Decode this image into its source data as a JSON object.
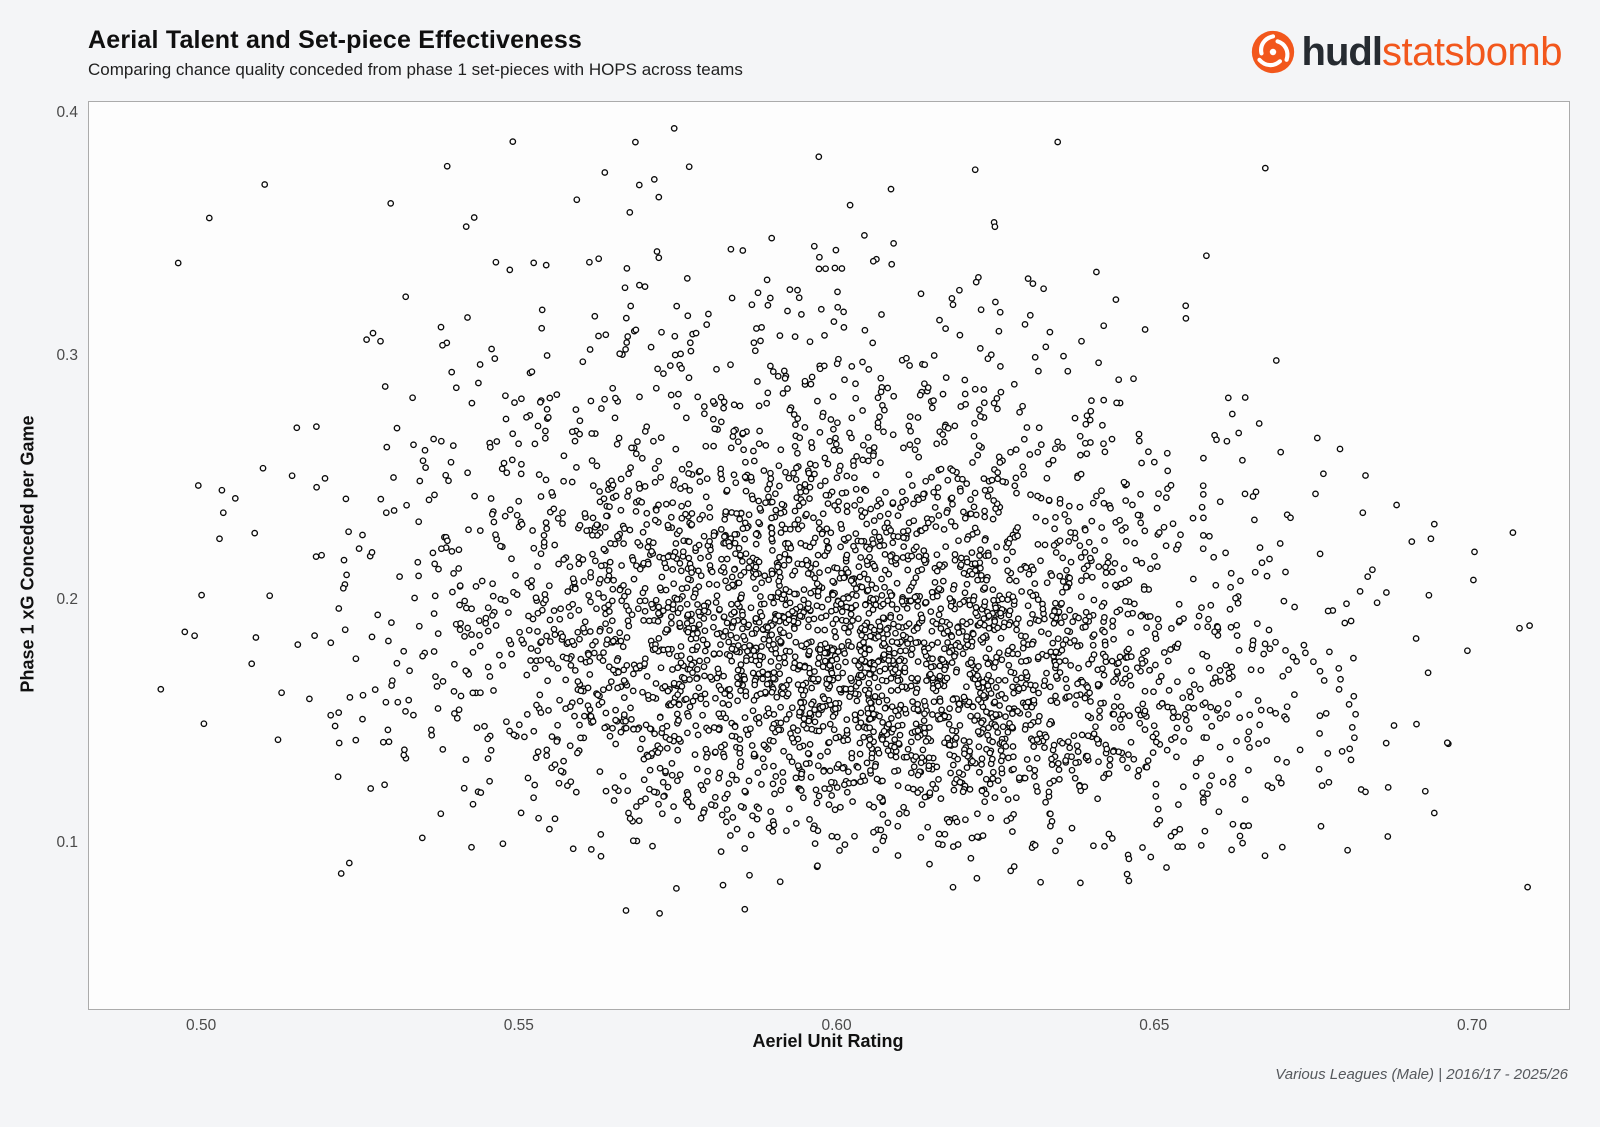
{
  "header": {
    "title": "Aerial Talent and Set-piece Effectiveness",
    "subtitle": "Comparing chance quality conceded from phase 1 set-pieces with HOPS across teams"
  },
  "logo": {
    "brand_primary": "hudl",
    "brand_secondary": "statsbomb",
    "icon": "statsbomb-swirl-icon",
    "orange": "#f2571c",
    "dark": "#262b31"
  },
  "footer": {
    "caption": "Various Leagues (Male) | 2016/17 - 2025/26"
  },
  "chart_data": {
    "type": "scatter",
    "title": "Aerial Talent and Set-piece Effectiveness",
    "subtitle": "Comparing chance quality conceded from phase 1 set-pieces with HOPS across teams",
    "xlabel": "Aeriel Unit Rating",
    "ylabel": "Phase 1 xG Conceded per Game",
    "x_ticks": [
      0.5,
      0.55,
      0.6,
      0.65,
      0.7
    ],
    "x_tick_labels": [
      "0.50",
      "0.55",
      "0.60",
      "0.65",
      "0.70"
    ],
    "y_ticks": [
      0.1,
      0.2,
      0.3,
      0.4
    ],
    "y_tick_labels": [
      "0.1",
      "0.2",
      "0.3",
      "0.4"
    ],
    "x_domain": [
      0.4822,
      0.7151
    ],
    "y_domain": [
      0.0322,
      0.4049
    ],
    "grid": false,
    "legend": "none",
    "n_points": 4000,
    "distribution": {
      "note": "dense single-cluster point cloud, centered near (0.60, 0.19), slight negative trend, upper-tail skew in y",
      "x": {
        "type": "normal",
        "mean": 0.601,
        "std": 0.034,
        "clip": [
          0.488,
          0.711
        ]
      },
      "y": {
        "type": "lognormal",
        "median": 0.186,
        "sigma_log": 0.27,
        "clip": [
          0.048,
          0.396
        ]
      },
      "correlation": -0.15,
      "seed": 20161726
    },
    "marker": {
      "shape": "open-circle",
      "radius_px": 2.7,
      "stroke": "#0a0a0a",
      "stroke_width": 1.35,
      "fill": "#ffffff"
    },
    "caption": "Various Leagues (Male) | 2016/17 - 2025/26"
  }
}
